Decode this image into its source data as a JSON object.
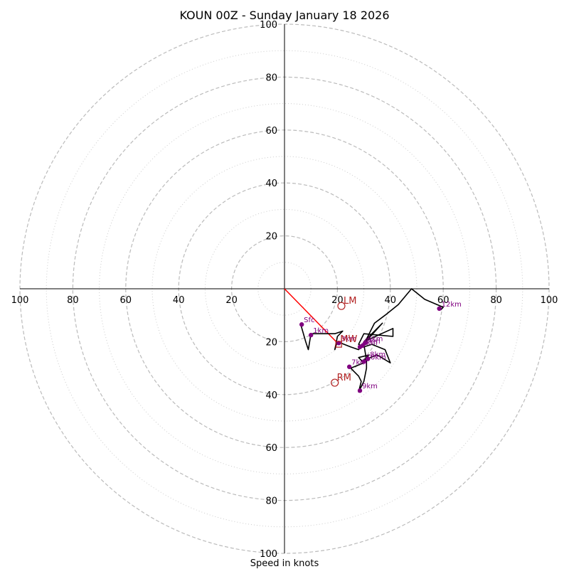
{
  "chart_data": {
    "type": "hodograph",
    "title": "KOUN 00Z - Sunday January 18 2026",
    "xlabel": "Speed in knots",
    "range": [
      -100,
      100
    ],
    "ring_major": [
      20,
      40,
      60,
      80,
      100
    ],
    "ring_minor": [
      10,
      30,
      50,
      70,
      90
    ],
    "tick_values": [
      20,
      40,
      60,
      80,
      100
    ],
    "tick_labels": [
      "20",
      "40",
      "60",
      "80",
      "100"
    ],
    "colors": {
      "trace": "#000000",
      "height": "#800080",
      "motion": "#b22222",
      "shear": "#ff0000",
      "ring": "#bbbbbb"
    },
    "trace": [
      [
        6,
        -13
      ],
      [
        8,
        -20
      ],
      [
        9,
        -23
      ],
      [
        10,
        -17
      ],
      [
        19,
        -17
      ],
      [
        22,
        -16
      ],
      [
        20,
        -18
      ],
      [
        19,
        -23
      ],
      [
        20,
        -20
      ],
      [
        25,
        -22
      ],
      [
        28,
        -23
      ],
      [
        37,
        -13
      ],
      [
        30,
        -20
      ],
      [
        41,
        -15
      ],
      [
        41,
        -18
      ],
      [
        30,
        -17
      ],
      [
        28,
        -21
      ],
      [
        30,
        -22
      ],
      [
        33,
        -21
      ],
      [
        38,
        -23
      ],
      [
        40,
        -28
      ],
      [
        35,
        -25
      ],
      [
        30,
        -27
      ],
      [
        32,
        -25
      ],
      [
        28,
        -26
      ],
      [
        30,
        -28
      ],
      [
        25,
        -30
      ],
      [
        28,
        -33
      ],
      [
        29,
        -35
      ],
      [
        28,
        -39
      ],
      [
        30,
        -35
      ],
      [
        31,
        -30
      ],
      [
        31,
        -27
      ],
      [
        30,
        -21
      ],
      [
        31,
        -19
      ],
      [
        34,
        -13
      ],
      [
        38,
        -10
      ],
      [
        43,
        -6
      ],
      [
        48,
        0
      ],
      [
        53,
        -4
      ],
      [
        60,
        -7
      ],
      [
        59,
        -8
      ]
    ],
    "heights": [
      {
        "label": "Sfc",
        "u": 6.5,
        "v": -13.5
      },
      {
        "label": "1km",
        "u": 10,
        "v": -17.5
      },
      {
        "label": "3km",
        "u": 20.5,
        "v": -20.5
      },
      {
        "label": "6km",
        "u": 30.5,
        "v": -20.5
      },
      {
        "label": "5km",
        "u": 29.5,
        "v": -21.5
      },
      {
        "label": "4km",
        "u": 28.5,
        "v": -22
      },
      {
        "label": "8km",
        "u": 31.5,
        "v": -26.5
      },
      {
        "label": "10km",
        "u": 30,
        "v": -27.5
      },
      {
        "label": "7km",
        "u": 24.5,
        "v": -29.5
      },
      {
        "label": "9km",
        "u": 28.5,
        "v": -38.5
      },
      {
        "label": "12km",
        "u": 58.5,
        "v": -7.5
      }
    ],
    "storm_motion": [
      {
        "label": "LM",
        "u": 21.5,
        "v": -6.5
      },
      {
        "label": "RM",
        "u": 19,
        "v": -35.5
      },
      {
        "label": "MW",
        "u": 20.5,
        "v": -21
      }
    ],
    "shear_vector": {
      "from": [
        0,
        0
      ],
      "to": [
        20.5,
        -21
      ]
    }
  }
}
